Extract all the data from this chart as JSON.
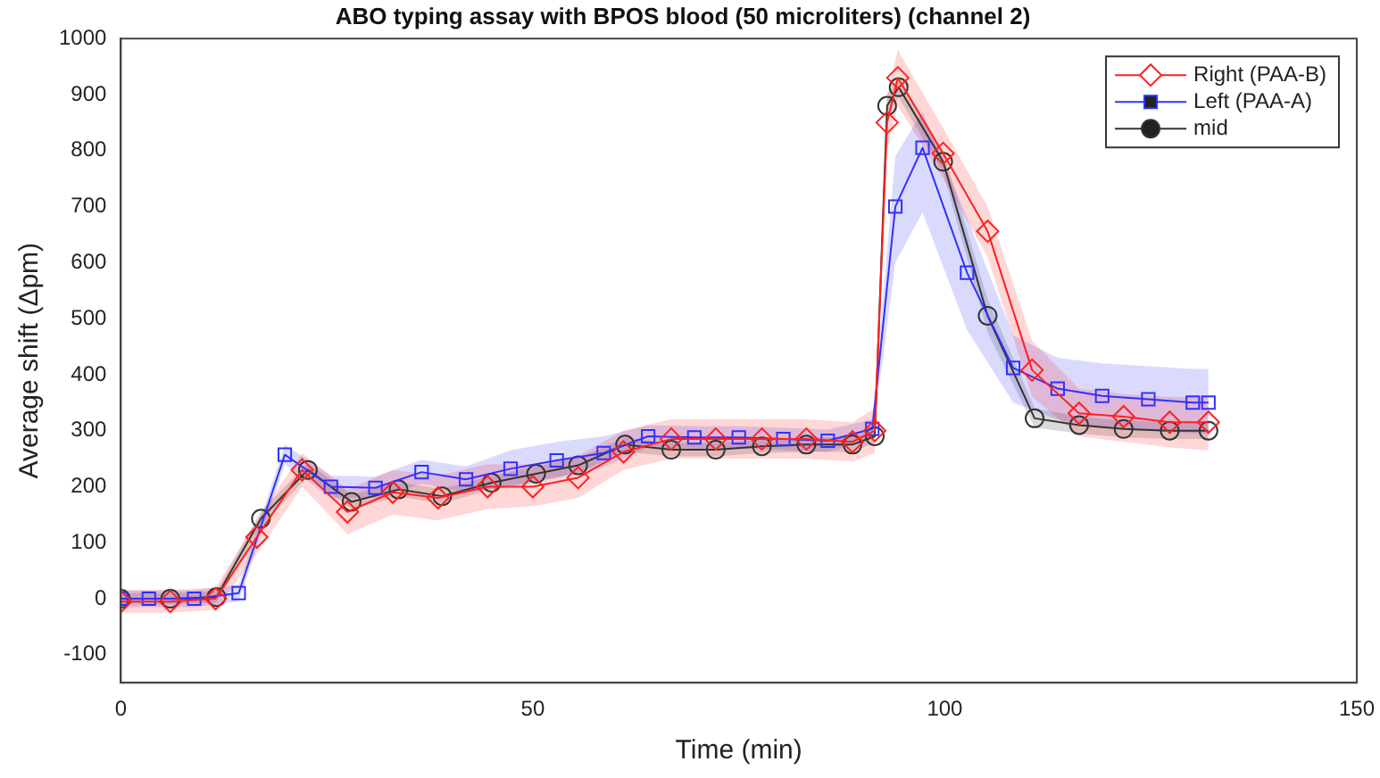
{
  "chart_data": {
    "type": "line",
    "title": "ABO typing assay with BPOS blood (50 microliters) (channel 2)",
    "xlabel": "Time (min)",
    "ylabel": "Average shift (Δpm)",
    "xlim": [
      0,
      150
    ],
    "xticks": [
      0,
      50,
      100,
      150
    ],
    "ylim": [
      -150,
      1000
    ],
    "yticks": [
      -100,
      0,
      100,
      200,
      300,
      400,
      500,
      600,
      700,
      800,
      900,
      1000
    ],
    "grid": false,
    "legend": "top right",
    "line_style": "solid",
    "series": [
      {
        "name": "Right (PAA-B)",
        "color": "#ff2020",
        "marker": "diamond",
        "x": [
          0,
          6,
          11.5,
          16.5,
          22,
          27.5,
          33,
          38.5,
          44.5,
          50,
          55.5,
          61,
          66.8,
          72.2,
          77.8,
          83.2,
          88.8,
          91.5,
          93,
          94.3,
          99.8,
          105.2,
          110.6,
          116.3,
          121.7,
          127.3,
          132
        ],
        "values": [
          -5,
          -5,
          0,
          110,
          230,
          155,
          190,
          180,
          200,
          200,
          216,
          262,
          285,
          285,
          285,
          285,
          280,
          300,
          850,
          930,
          795,
          656,
          408,
          331,
          325,
          315,
          315
        ],
        "lower": [
          -25,
          -25,
          -20,
          80,
          200,
          115,
          150,
          140,
          160,
          165,
          180,
          230,
          250,
          250,
          250,
          250,
          245,
          260,
          800,
          880,
          750,
          610,
          360,
          290,
          280,
          270,
          265
        ],
        "upper": [
          15,
          15,
          20,
          140,
          260,
          195,
          230,
          220,
          240,
          240,
          255,
          300,
          320,
          320,
          320,
          320,
          315,
          340,
          900,
          980,
          840,
          700,
          460,
          375,
          365,
          360,
          360
        ]
      },
      {
        "name": "Left (PAA-A)",
        "color": "#3030ff",
        "marker": "square",
        "x": [
          0,
          3.4,
          8.9,
          14.3,
          19.9,
          25.5,
          30.9,
          36.5,
          41.9,
          47.3,
          52.9,
          58.6,
          64,
          69.6,
          75,
          80.4,
          85.8,
          91.2,
          94,
          97.3,
          102.7,
          108.3,
          113.7,
          119.1,
          124.7,
          130.1,
          132
        ],
        "values": [
          0,
          0,
          0,
          10,
          257,
          200,
          198,
          226,
          213,
          232,
          247,
          260,
          290,
          288,
          288,
          285,
          282,
          303,
          700,
          805,
          582,
          412,
          375,
          362,
          356,
          350,
          350
        ],
        "lower": [
          -15,
          -15,
          -15,
          -5,
          240,
          180,
          180,
          205,
          190,
          200,
          215,
          235,
          270,
          268,
          268,
          265,
          262,
          285,
          600,
          690,
          480,
          350,
          320,
          305,
          300,
          295,
          295
        ],
        "upper": [
          15,
          15,
          15,
          25,
          275,
          220,
          218,
          248,
          236,
          265,
          280,
          290,
          310,
          308,
          308,
          305,
          302,
          320,
          790,
          870,
          680,
          470,
          430,
          420,
          415,
          410,
          410
        ]
      },
      {
        "name": "mid",
        "color": "#333333",
        "marker": "circle",
        "x": [
          0,
          6,
          11.6,
          17,
          22.7,
          28,
          33.7,
          39,
          45,
          50.4,
          55.5,
          61.2,
          66.8,
          72.2,
          77.8,
          83.2,
          88.8,
          91.5,
          93,
          94.4,
          99.8,
          105.2,
          110.9,
          116.3,
          121.7,
          127.3,
          132
        ],
        "values": [
          0,
          0,
          3,
          143,
          230,
          173,
          195,
          183,
          207,
          223,
          238,
          275,
          266,
          266,
          272,
          275,
          275,
          290,
          880,
          913,
          780,
          505,
          322,
          310,
          303,
          300,
          300
        ],
        "lower": [
          -10,
          -10,
          -7,
          130,
          218,
          160,
          182,
          170,
          195,
          210,
          225,
          262,
          254,
          254,
          260,
          262,
          262,
          278,
          860,
          895,
          760,
          475,
          305,
          295,
          288,
          285,
          285
        ],
        "upper": [
          10,
          10,
          13,
          156,
          242,
          186,
          208,
          196,
          219,
          236,
          251,
          288,
          278,
          278,
          284,
          288,
          288,
          302,
          900,
          930,
          800,
          535,
          340,
          325,
          318,
          315,
          315
        ]
      }
    ]
  }
}
